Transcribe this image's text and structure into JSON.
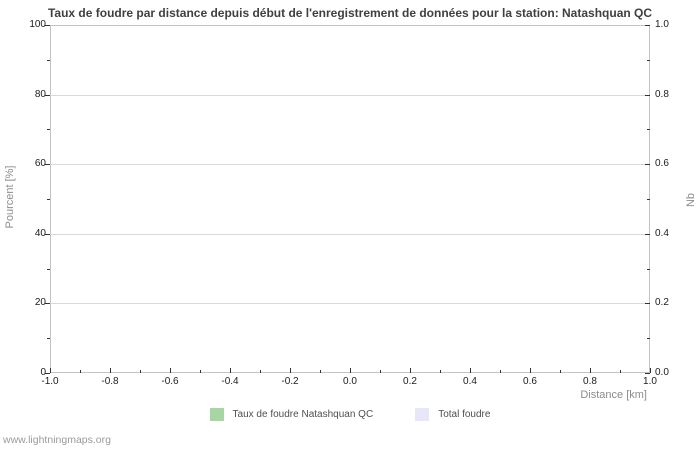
{
  "chart_data": {
    "type": "bar",
    "title": "Taux de foudre par distance depuis début de l'enregistrement de données pour la station: Natashquan QC",
    "x_axis": {
      "label": "Distance  [km]",
      "lim": [
        -1.0,
        1.0
      ],
      "ticks_major": [
        {
          "v": -1.0,
          "label": "-1.0"
        },
        {
          "v": -0.8,
          "label": "-0.8"
        },
        {
          "v": -0.6,
          "label": "-0.6"
        },
        {
          "v": -0.4,
          "label": "-0.4"
        },
        {
          "v": -0.2,
          "label": "-0.2"
        },
        {
          "v": 0.0,
          "label": "0.0"
        },
        {
          "v": 0.2,
          "label": "0.2"
        },
        {
          "v": 0.4,
          "label": "0.4"
        },
        {
          "v": 0.6,
          "label": "0.6"
        },
        {
          "v": 0.8,
          "label": "0.8"
        },
        {
          "v": 1.0,
          "label": "1.0"
        }
      ],
      "ticks_minor": [
        -0.9,
        -0.7,
        -0.5,
        -0.3,
        -0.1,
        0.1,
        0.3,
        0.5,
        0.7,
        0.9
      ]
    },
    "y_left": {
      "label": "Pourcent  [%]",
      "lim": [
        0,
        100
      ],
      "ticks_major": [
        {
          "v": 0,
          "label": "0"
        },
        {
          "v": 20,
          "label": "20"
        },
        {
          "v": 40,
          "label": "40"
        },
        {
          "v": 60,
          "label": "60"
        },
        {
          "v": 80,
          "label": "80"
        },
        {
          "v": 100,
          "label": "100"
        }
      ],
      "ticks_minor": [
        10,
        30,
        50,
        70,
        90
      ]
    },
    "y_right": {
      "label": "Nb",
      "lim": [
        0.0,
        1.0
      ],
      "ticks_major": [
        {
          "v": 0.0,
          "label": "0.0"
        },
        {
          "v": 0.2,
          "label": "0.2"
        },
        {
          "v": 0.4,
          "label": "0.4"
        },
        {
          "v": 0.6,
          "label": "0.6"
        },
        {
          "v": 0.8,
          "label": "0.8"
        },
        {
          "v": 1.0,
          "label": "1.0"
        }
      ],
      "ticks_minor": [
        0.1,
        0.3,
        0.5,
        0.7,
        0.9
      ]
    },
    "grid": {
      "horizontal_major": true,
      "vertical": false,
      "color": "#d9d9d9"
    },
    "series": [
      {
        "name": "Taux de foudre Natashquan QC",
        "color": "#a8d6a2",
        "x": [],
        "values": []
      },
      {
        "name": "Total foudre",
        "color": "#e7e7f9",
        "x": [],
        "values": []
      }
    ],
    "legend": {
      "position": "bottom",
      "items": [
        {
          "label": "Taux de foudre Natashquan QC",
          "color": "#a8d6a2"
        },
        {
          "label": "Total foudre",
          "color": "#e7e7f9"
        }
      ]
    }
  },
  "footer": {
    "text": "www.lightningmaps.org"
  }
}
